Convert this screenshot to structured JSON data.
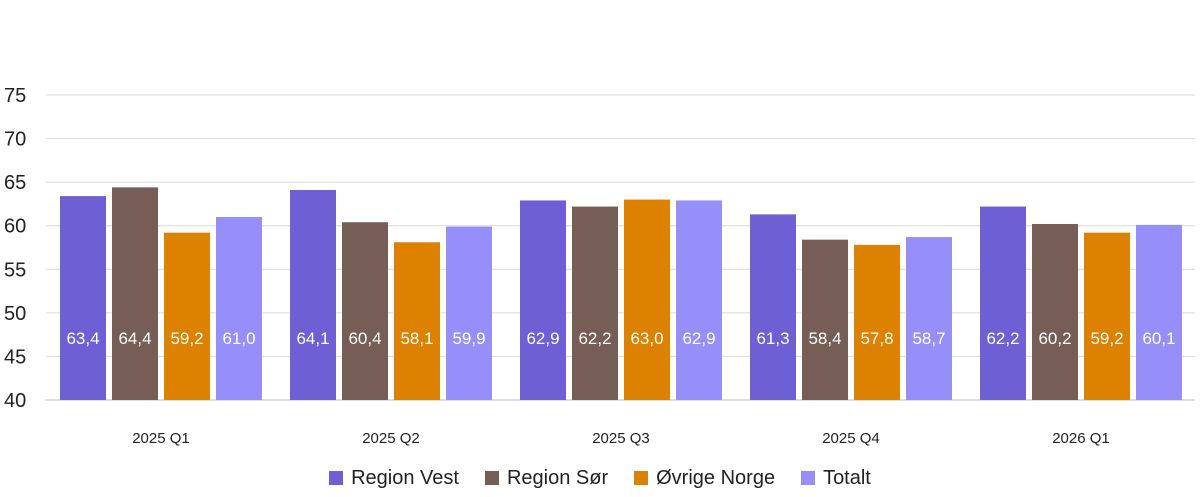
{
  "chart_data": {
    "type": "bar",
    "categories": [
      "2025 Q1",
      "2025 Q2",
      "2025 Q3",
      "2025 Q4",
      "2026 Q1"
    ],
    "series": [
      {
        "name": "Region Vest",
        "color": "#6f5fd4",
        "values": [
          63.4,
          64.1,
          62.9,
          61.3,
          62.2
        ],
        "labels": [
          "63,4",
          "64,1",
          "62,9",
          "61,3",
          "62,2"
        ]
      },
      {
        "name": "Region Sør",
        "color": "#765e57",
        "values": [
          64.4,
          60.4,
          62.2,
          58.4,
          60.2
        ],
        "labels": [
          "64,4",
          "60,4",
          "62,2",
          "58,4",
          "60,2"
        ]
      },
      {
        "name": "Øvrige Norge",
        "color": "#dc8100",
        "values": [
          59.2,
          58.1,
          63.0,
          57.8,
          59.2
        ],
        "labels": [
          "59,2",
          "58,1",
          "63,0",
          "57,8",
          "59,2"
        ]
      },
      {
        "name": "Totalt",
        "color": "#978ff9",
        "values": [
          61.0,
          59.9,
          62.9,
          58.7,
          60.1
        ],
        "labels": [
          "61,0",
          "59,9",
          "62,9",
          "58,7",
          "60,1"
        ]
      }
    ],
    "title": "",
    "xlabel": "",
    "ylabel": "",
    "ylim": [
      40,
      75
    ],
    "yticks": [
      "40",
      "45",
      "50",
      "55",
      "60",
      "65",
      "70",
      "75"
    ],
    "grid": true,
    "legend_position": "bottom"
  }
}
